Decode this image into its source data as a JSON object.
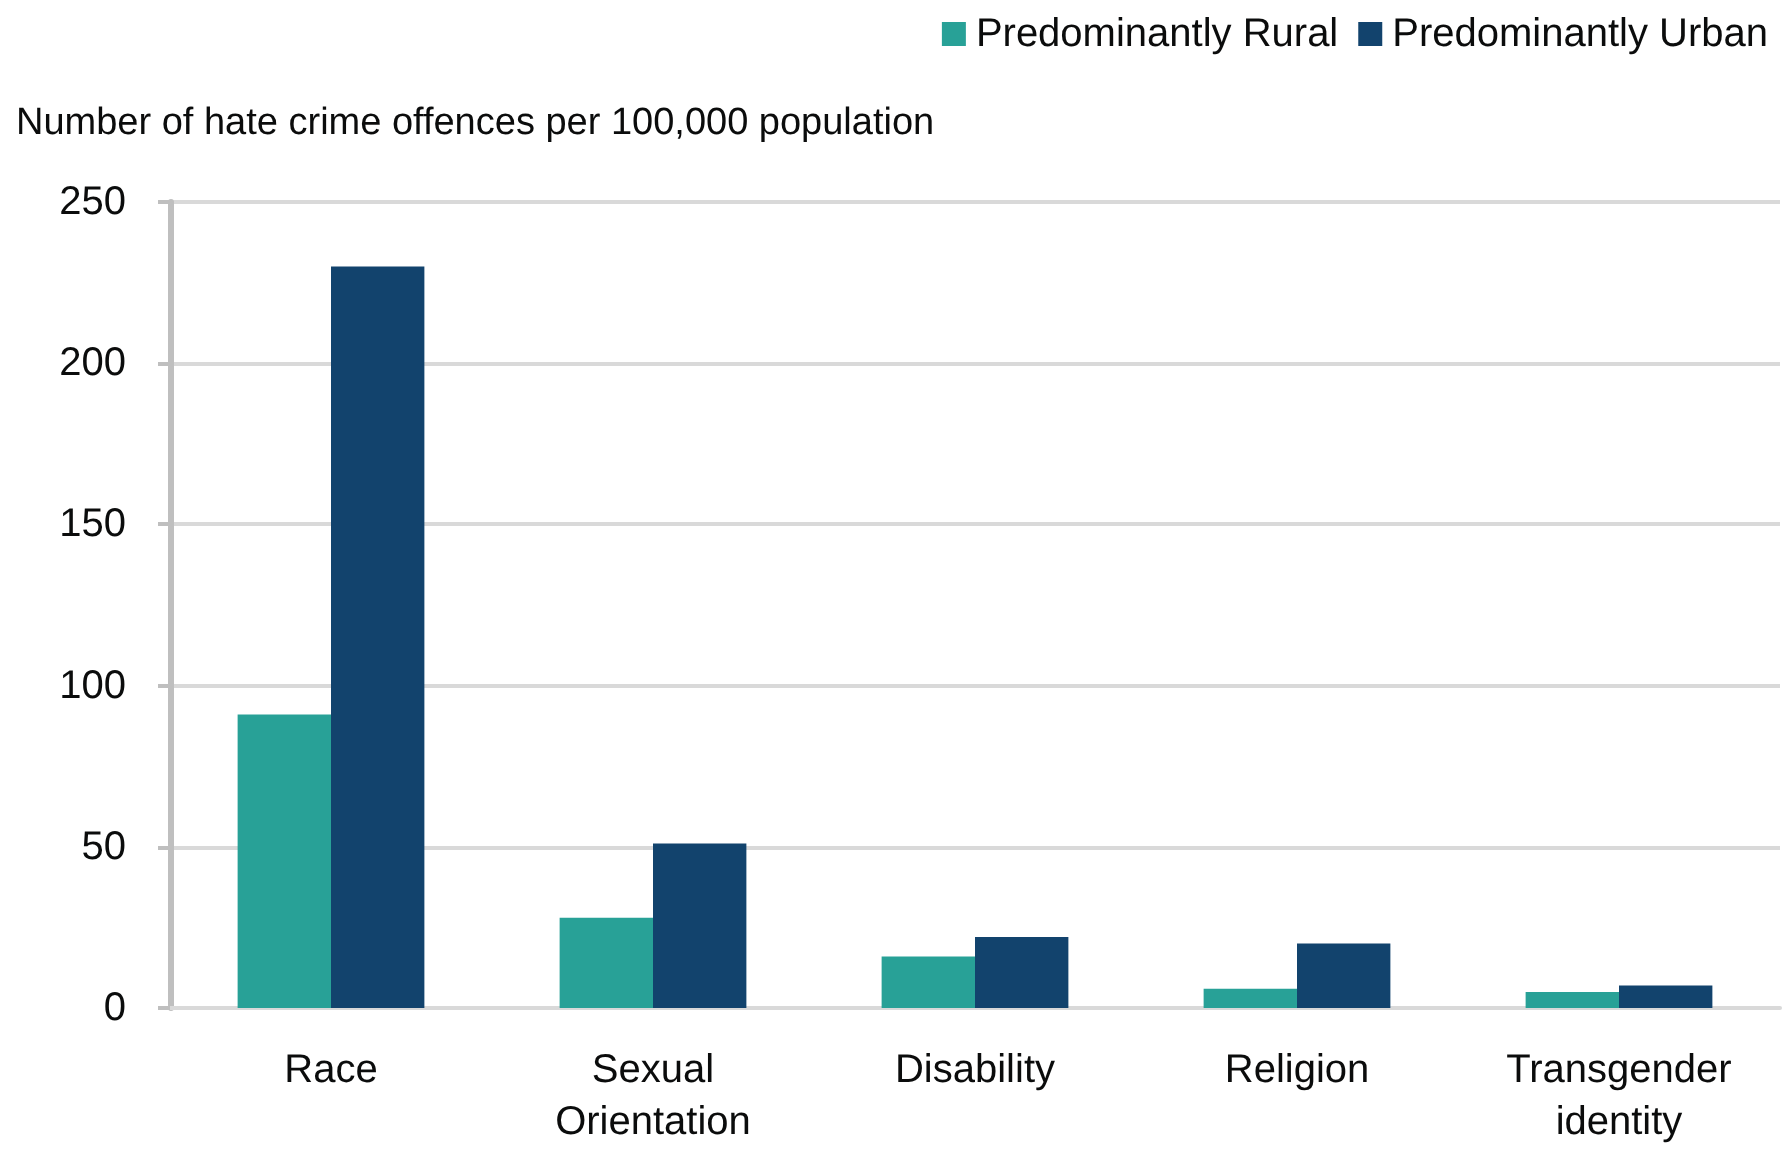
{
  "chart_data": {
    "type": "bar",
    "ylabel": "Number of hate crime offences per 100,000 population",
    "categories": [
      "Race",
      "Sexual\nOrientation",
      "Disability",
      "Religion",
      "Transgender\nidentity"
    ],
    "series": [
      {
        "name": "Predominantly Rural",
        "color": "#28a197",
        "values": [
          91,
          28,
          16,
          6,
          5
        ]
      },
      {
        "name": "Predominantly Urban",
        "color": "#12436d",
        "values": [
          230,
          51,
          22,
          20,
          7
        ]
      }
    ],
    "ylim": [
      0,
      250
    ],
    "yticks": [
      0,
      50,
      100,
      150,
      200,
      250
    ],
    "grid": "y",
    "legend": "top right"
  }
}
